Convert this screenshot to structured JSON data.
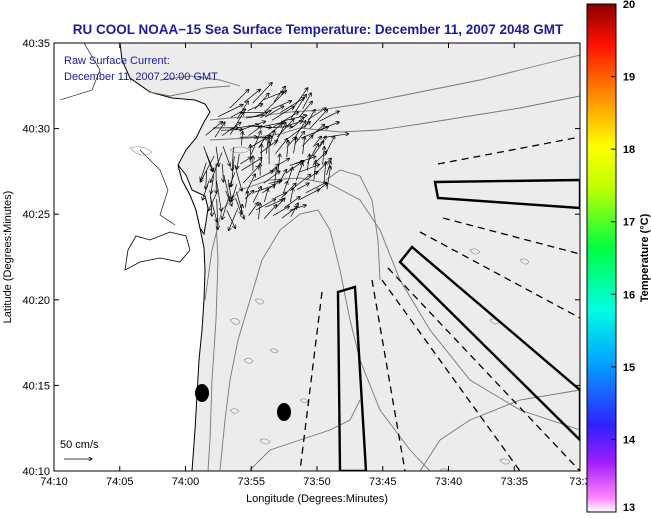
{
  "title": "RU COOL  NOAA−15  Sea Surface Temperature:  December 11, 2007 2048 GMT",
  "annotation": {
    "line1": "Raw Surface Current:",
    "line2": "December 11, 2007 20:00 GMT"
  },
  "scale_label": "50 cm/s",
  "axes": {
    "xlabel": "Longitude (Degrees:Minutes)",
    "ylabel": "Latitude (Degrees:Minutes)",
    "x_ticks": [
      "74:10",
      "74:05",
      "74:00",
      "73:55",
      "73:50",
      "73:45",
      "73:40",
      "73:35",
      "73:3"
    ],
    "y_ticks": [
      "40:35",
      "40:30",
      "40:25",
      "40:20",
      "40:15",
      "40:10"
    ]
  },
  "colorbar": {
    "label": "Temperature (°C)",
    "ticks": [
      "20",
      "19",
      "18",
      "17",
      "16",
      "15",
      "14",
      "13"
    ],
    "min": 13,
    "max": 20,
    "colors": [
      "#8b0000",
      "#ff0000",
      "#ff8000",
      "#ffff00",
      "#00ff00",
      "#00ffff",
      "#0000ff",
      "#ff00ff"
    ]
  },
  "map_features": {
    "background_color": "#ececea",
    "vector_field_color": "#000000",
    "dump_markers": 2,
    "restricted_zones": 4,
    "dashed_lines": 10
  }
}
